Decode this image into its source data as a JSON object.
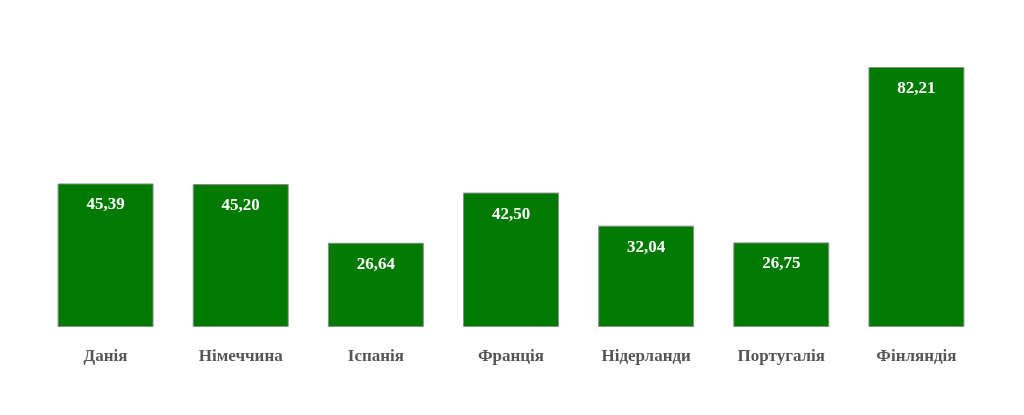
{
  "chart_data": {
    "type": "bar",
    "categories": [
      "Данія",
      "Німеччина",
      "Іспанія",
      "Франція",
      "Нідерланди",
      "Португалія",
      "Фінляндія"
    ],
    "values": [
      45.39,
      45.2,
      26.64,
      42.5,
      32.04,
      26.75,
      82.21
    ],
    "value_labels": [
      "45,39",
      "45,20",
      "26,64",
      "42,50",
      "32,04",
      "26,75",
      "82,21"
    ],
    "color": "#007a00"
  }
}
